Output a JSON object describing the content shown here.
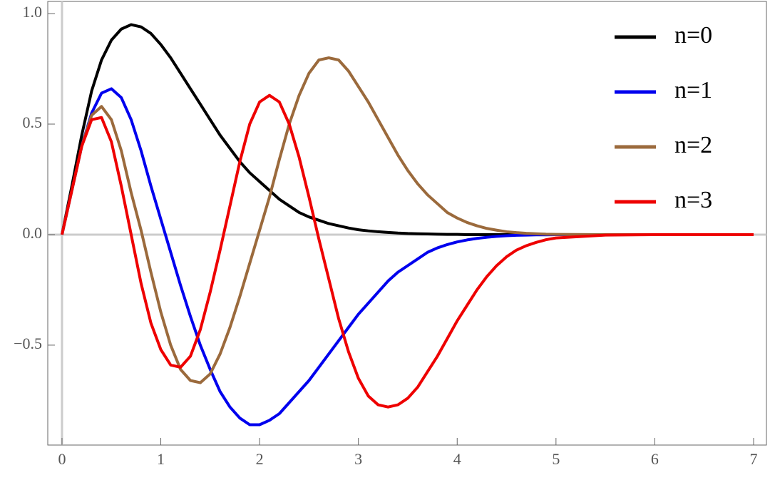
{
  "chart_data": {
    "type": "line",
    "x": [
      0,
      0.1,
      0.2,
      0.3,
      0.4,
      0.5,
      0.6,
      0.7,
      0.8,
      0.9,
      1.0,
      1.1,
      1.2,
      1.3,
      1.4,
      1.5,
      1.6,
      1.7,
      1.8,
      1.9,
      2.0,
      2.1,
      2.2,
      2.3,
      2.4,
      2.5,
      2.6,
      2.7,
      2.8,
      2.9,
      3.0,
      3.1,
      3.2,
      3.3,
      3.4,
      3.5,
      3.6,
      3.7,
      3.8,
      3.9,
      4.0,
      4.1,
      4.2,
      4.3,
      4.4,
      4.5,
      4.6,
      4.7,
      4.8,
      4.9,
      5.0,
      5.5,
      6.0,
      6.5,
      7.0
    ],
    "series": [
      {
        "name": "n=0",
        "color": "#000000",
        "values": [
          0,
          0.22,
          0.45,
          0.65,
          0.79,
          0.88,
          0.93,
          0.95,
          0.94,
          0.91,
          0.86,
          0.8,
          0.73,
          0.66,
          0.59,
          0.52,
          0.45,
          0.39,
          0.33,
          0.28,
          0.24,
          0.2,
          0.16,
          0.13,
          0.1,
          0.08,
          0.065,
          0.05,
          0.04,
          0.03,
          0.022,
          0.017,
          0.013,
          0.01,
          0.007,
          0.005,
          0.004,
          0.003,
          0.002,
          0.001,
          0.001,
          0,
          0,
          0,
          0,
          0,
          0,
          0,
          0,
          0,
          0,
          0,
          0,
          0,
          0
        ]
      },
      {
        "name": "n=1",
        "color": "#0000ee",
        "values": [
          0,
          0.2,
          0.4,
          0.55,
          0.64,
          0.66,
          0.62,
          0.52,
          0.38,
          0.22,
          0.07,
          -0.08,
          -0.23,
          -0.37,
          -0.5,
          -0.61,
          -0.71,
          -0.78,
          -0.83,
          -0.86,
          -0.86,
          -0.84,
          -0.81,
          -0.76,
          -0.71,
          -0.66,
          -0.6,
          -0.54,
          -0.48,
          -0.42,
          -0.36,
          -0.31,
          -0.26,
          -0.21,
          -0.17,
          -0.14,
          -0.11,
          -0.08,
          -0.06,
          -0.045,
          -0.033,
          -0.024,
          -0.017,
          -0.012,
          -0.008,
          -0.005,
          -0.003,
          -0.002,
          -0.001,
          -0.001,
          0,
          0,
          0,
          0,
          0
        ]
      },
      {
        "name": "n=2",
        "color": "#9b6a3c",
        "values": [
          0,
          0.2,
          0.4,
          0.54,
          0.58,
          0.52,
          0.38,
          0.19,
          0.02,
          -0.17,
          -0.35,
          -0.5,
          -0.61,
          -0.66,
          -0.67,
          -0.63,
          -0.54,
          -0.42,
          -0.28,
          -0.13,
          0.02,
          0.17,
          0.34,
          0.5,
          0.63,
          0.73,
          0.79,
          0.8,
          0.79,
          0.74,
          0.67,
          0.6,
          0.52,
          0.44,
          0.36,
          0.29,
          0.23,
          0.18,
          0.14,
          0.1,
          0.075,
          0.055,
          0.04,
          0.028,
          0.02,
          0.013,
          0.009,
          0.006,
          0.004,
          0.002,
          0.001,
          0,
          0,
          0,
          0
        ]
      },
      {
        "name": "n=3",
        "color": "#ee0000",
        "values": [
          0,
          0.2,
          0.4,
          0.52,
          0.53,
          0.42,
          0.22,
          0,
          -0.22,
          -0.4,
          -0.52,
          -0.59,
          -0.6,
          -0.55,
          -0.43,
          -0.26,
          -0.07,
          0.13,
          0.33,
          0.5,
          0.6,
          0.63,
          0.6,
          0.5,
          0.35,
          0.17,
          -0.02,
          -0.2,
          -0.38,
          -0.53,
          -0.65,
          -0.73,
          -0.77,
          -0.78,
          -0.77,
          -0.74,
          -0.69,
          -0.62,
          -0.55,
          -0.47,
          -0.39,
          -0.32,
          -0.25,
          -0.19,
          -0.14,
          -0.1,
          -0.07,
          -0.05,
          -0.035,
          -0.023,
          -0.015,
          -0.002,
          0,
          0,
          0
        ]
      }
    ],
    "xlim": [
      -0.144,
      7.13
    ],
    "ylim": [
      -0.952,
      1.055
    ],
    "xticks": [
      0,
      1,
      2,
      3,
      4,
      5,
      6,
      7
    ],
    "yticks": [
      {
        "value": -0.5,
        "label": "−0.5"
      },
      {
        "value": 0,
        "label": "0.0"
      },
      {
        "value": 0.5,
        "label": "0.5"
      },
      {
        "value": 1,
        "label": "1.0"
      }
    ],
    "legend": "top-right"
  }
}
